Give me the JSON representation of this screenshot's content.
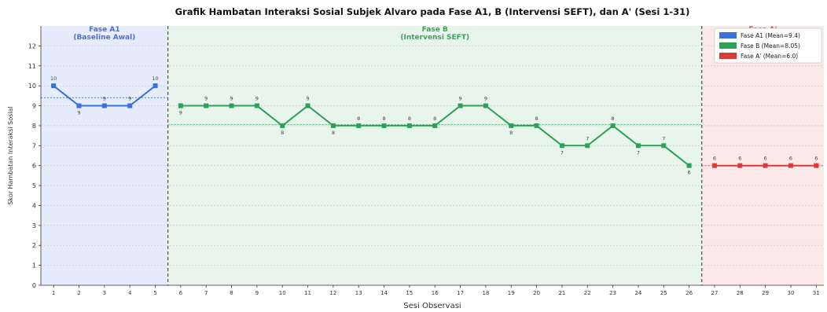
{
  "chart_data": {
    "type": "line",
    "title": "Grafik Hambatan Interaksi Sosial Subjek Alvaro pada Fase A1, B (Intervensi SEFT), dan A' (Sesi 1-31)",
    "xlabel": "Sesi Observasi",
    "ylabel": "Skor Hambatan Interaksi Sosial",
    "xlim": [
      0.5,
      31.3
    ],
    "ylim": [
      0,
      13
    ],
    "yticks": [
      0,
      1,
      2,
      3,
      4,
      5,
      6,
      7,
      8,
      9,
      10,
      11,
      12
    ],
    "xticks": [
      1,
      2,
      3,
      4,
      5,
      6,
      7,
      8,
      9,
      10,
      11,
      12,
      13,
      14,
      15,
      16,
      17,
      18,
      19,
      20,
      21,
      22,
      23,
      24,
      25,
      26,
      27,
      28,
      29,
      30,
      31
    ],
    "grid": "horizontal dotted",
    "legend_position": "top-right",
    "phases": [
      {
        "name": "Fase A1",
        "label_line1": "Fase A1",
        "label_line2": "(Baseline Awal)",
        "start": 0.5,
        "end": 5.5,
        "bg": "#e6ecfb",
        "label_color": "#4a6fd8"
      },
      {
        "name": "Fase B",
        "label_line1": "Fase B",
        "label_line2": "(Intervensi SEFT)",
        "start": 5.5,
        "end": 26.5,
        "bg": "#e8f5ea",
        "label_color": "#3aa35a"
      },
      {
        "name": "Fase A'",
        "label_line1": "Fase A'",
        "label_line2": "",
        "start": 26.5,
        "end": 31.3,
        "bg": "#fbe8e8",
        "label_color": "#d94040"
      }
    ],
    "phase_boundaries": [
      5.5,
      26.5
    ],
    "series": [
      {
        "name": "Fase A1",
        "legend": "Fase A1  (Mean=9.4)",
        "color": "#3b6fdc",
        "mean": 9.4,
        "x": [
          1,
          2,
          3,
          4,
          5
        ],
        "values": [
          10,
          9,
          9,
          9,
          10
        ],
        "label_pos": [
          "above",
          "below",
          "above",
          "above",
          "above"
        ]
      },
      {
        "name": "Fase B",
        "legend": "Fase B   (Mean=8.05)",
        "color": "#2ea05a",
        "mean": 8.05,
        "x": [
          6,
          7,
          8,
          9,
          10,
          11,
          12,
          13,
          14,
          15,
          16,
          17,
          18,
          19,
          20,
          21,
          22,
          23,
          24,
          25,
          26
        ],
        "values": [
          9,
          9,
          9,
          9,
          8,
          9,
          8,
          8,
          8,
          8,
          8,
          9,
          9,
          8,
          8,
          7,
          7,
          8,
          7,
          7,
          6
        ],
        "label_pos": [
          "below",
          "above",
          "above",
          "above",
          "below",
          "above",
          "below",
          "above",
          "above",
          "above",
          "above",
          "above",
          "above",
          "below",
          "above",
          "below",
          "above",
          "above",
          "below",
          "above",
          "below"
        ]
      },
      {
        "name": "Fase A'",
        "legend": "Fase A'  (Mean=6.0)",
        "color": "#d93a3a",
        "mean": 6.0,
        "x": [
          27,
          28,
          29,
          30,
          31
        ],
        "values": [
          6,
          6,
          6,
          6,
          6
        ],
        "label_pos": [
          "above",
          "above",
          "above",
          "above",
          "above"
        ]
      }
    ]
  }
}
